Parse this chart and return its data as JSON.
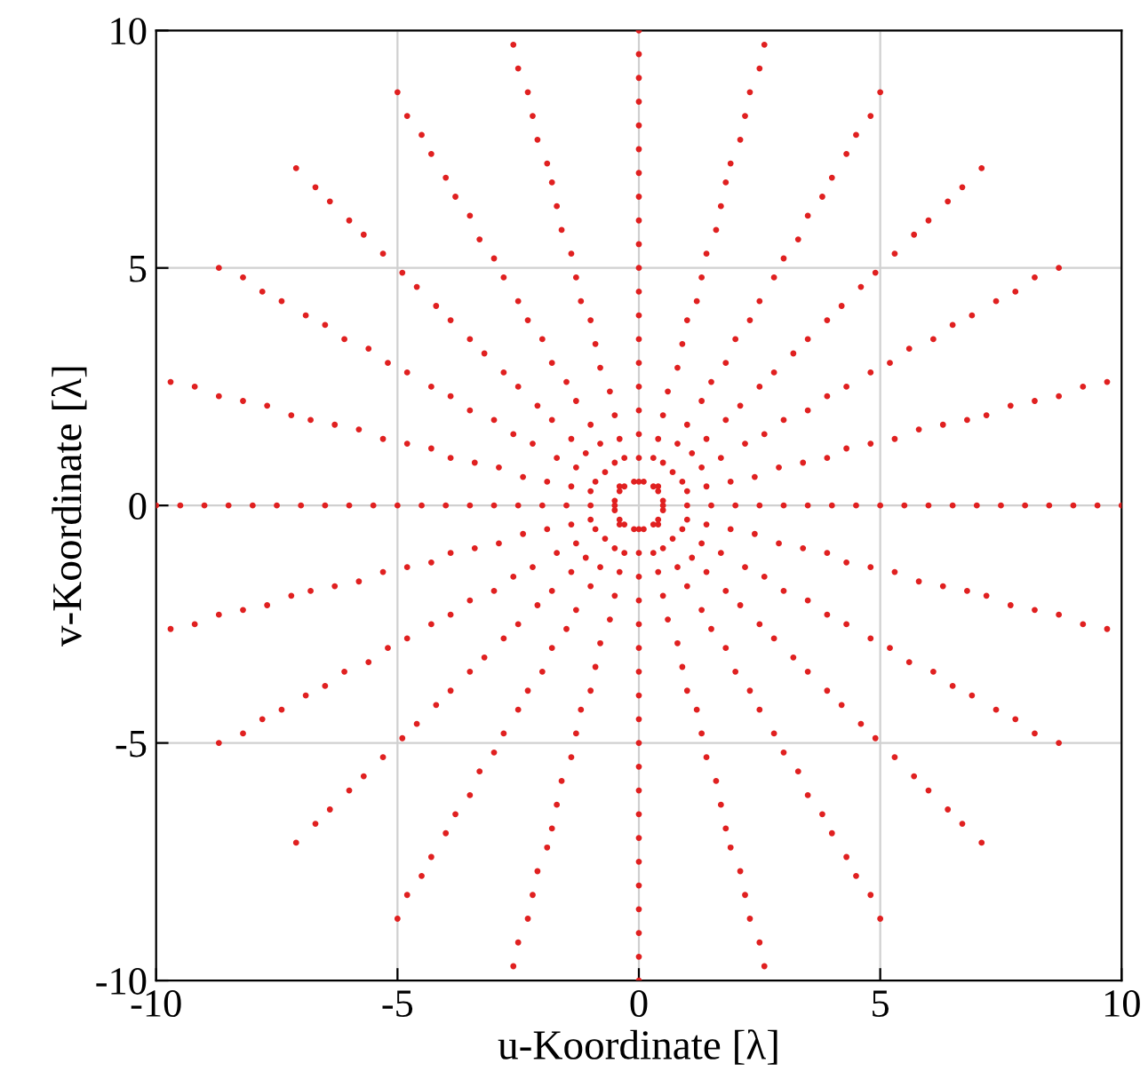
{
  "chart_data": {
    "type": "scatter",
    "xlabel": "u-Koordinate [λ]",
    "ylabel": "v-Koordinate [λ]",
    "xlim": [
      -10,
      10
    ],
    "ylim": [
      -10,
      10
    ],
    "xticks": [
      -10,
      -5,
      0,
      5,
      10
    ],
    "yticks": [
      -10,
      -5,
      0,
      5,
      10
    ],
    "grid": true,
    "marker": "circle",
    "series": [
      {
        "color": "#e02020",
        "x": [
          0.5,
          0.5,
          0.4,
          0.4,
          0.3,
          0.1,
          0,
          -0.1,
          -0.3,
          -0.4,
          -0.4,
          -0.5,
          -0.5,
          -0.5,
          -0.4,
          -0.4,
          -0.3,
          -0.1,
          0,
          0.1,
          0.3,
          0.4,
          0.4,
          0.5
        ],
        "values": [
          0,
          0.1,
          0.3,
          0.4,
          0.4,
          0.5,
          0.5,
          0.5,
          0.4,
          0.4,
          0.3,
          0.1,
          0,
          -0.1,
          -0.3,
          -0.4,
          -0.4,
          -0.5,
          -0.5,
          -0.5,
          -0.4,
          -0.4,
          -0.3,
          -0.1
        ]
      },
      {
        "color": "#e02020",
        "x": [
          1,
          1,
          0.9,
          0.7,
          0.5,
          0.3,
          0,
          -0.3,
          -0.5,
          -0.7,
          -0.9,
          -1,
          -1,
          -1,
          -0.9,
          -0.7,
          -0.5,
          -0.3,
          0,
          0.3,
          0.5,
          0.7,
          0.9,
          1
        ],
        "values": [
          0,
          0.3,
          0.5,
          0.7,
          0.9,
          1,
          1,
          1,
          0.9,
          0.7,
          0.5,
          0.3,
          0,
          -0.3,
          -0.5,
          -0.7,
          -0.9,
          -1,
          -1,
          -1,
          -0.9,
          -0.7,
          -0.5,
          -0.3
        ]
      },
      {
        "color": "#e02020",
        "x": [
          1.5,
          1.4,
          1.3,
          1.1,
          0.8,
          0.4,
          0,
          -0.4,
          -0.8,
          -1.1,
          -1.3,
          -1.4,
          -1.5,
          -1.4,
          -1.3,
          -1.1,
          -0.8,
          -0.4,
          0,
          0.4,
          0.8,
          1.1,
          1.3,
          1.4
        ],
        "values": [
          0,
          0.4,
          0.8,
          1.1,
          1.3,
          1.4,
          1.5,
          1.4,
          1.3,
          1.1,
          0.8,
          0.4,
          0,
          -0.4,
          -0.8,
          -1.1,
          -1.3,
          -1.4,
          -1.5,
          -1.4,
          -1.3,
          -1.1,
          -0.8,
          -0.4
        ]
      },
      {
        "color": "#e02020",
        "x": [
          2,
          1.9,
          1.7,
          1.4,
          1,
          0.5,
          0,
          -0.5,
          -1,
          -1.4,
          -1.7,
          -1.9,
          -2,
          -1.9,
          -1.7,
          -1.4,
          -1,
          -0.5,
          0,
          0.5,
          1,
          1.4,
          1.7,
          1.9
        ],
        "values": [
          0,
          0.5,
          1,
          1.4,
          1.7,
          1.9,
          2,
          1.9,
          1.7,
          1.4,
          1,
          0.5,
          0,
          -0.5,
          -1,
          -1.4,
          -1.7,
          -1.9,
          -2,
          -1.9,
          -1.7,
          -1.4,
          -1,
          -0.5
        ]
      },
      {
        "color": "#e02020",
        "x": [
          2.5,
          2.4,
          2.2,
          1.8,
          1.3,
          0.6,
          0,
          -0.6,
          -1.3,
          -1.8,
          -2.2,
          -2.4,
          -2.5,
          -2.4,
          -2.2,
          -1.8,
          -1.3,
          -0.6,
          0,
          0.6,
          1.3,
          1.8,
          2.2,
          2.4
        ],
        "values": [
          0,
          0.6,
          1.3,
          1.8,
          2.2,
          2.4,
          2.5,
          2.4,
          2.2,
          1.8,
          1.3,
          0.6,
          0,
          -0.6,
          -1.3,
          -1.8,
          -2.2,
          -2.4,
          -2.5,
          -2.4,
          -2.2,
          -1.8,
          -1.3,
          -0.6
        ]
      },
      {
        "color": "#e02020",
        "x": [
          3,
          2.9,
          2.6,
          2.1,
          1.5,
          0.8,
          0,
          -0.8,
          -1.5,
          -2.1,
          -2.6,
          -2.9,
          -3,
          -2.9,
          -2.6,
          -2.1,
          -1.5,
          -0.8,
          0,
          0.8,
          1.5,
          2.1,
          2.6,
          2.9
        ],
        "values": [
          0,
          0.8,
          1.5,
          2.1,
          2.6,
          2.9,
          3,
          2.9,
          2.6,
          2.1,
          1.5,
          0.8,
          0,
          -0.8,
          -1.5,
          -2.1,
          -2.6,
          -2.9,
          -3,
          -2.9,
          -2.6,
          -2.1,
          -1.5,
          -0.8
        ]
      },
      {
        "color": "#e02020",
        "x": [
          3.5,
          3.4,
          3,
          2.5,
          1.8,
          0.9,
          0,
          -0.9,
          -1.8,
          -2.5,
          -3,
          -3.4,
          -3.5,
          -3.4,
          -3,
          -2.5,
          -1.8,
          -0.9,
          0,
          0.9,
          1.8,
          2.5,
          3,
          3.4
        ],
        "values": [
          0,
          0.9,
          1.8,
          2.5,
          3,
          3.4,
          3.5,
          3.4,
          3,
          2.5,
          1.8,
          0.9,
          0,
          -0.9,
          -1.8,
          -2.5,
          -3,
          -3.4,
          -3.5,
          -3.4,
          -3,
          -2.5,
          -1.8,
          -0.9
        ]
      },
      {
        "color": "#e02020",
        "x": [
          4,
          3.9,
          3.5,
          2.8,
          2,
          1,
          0,
          -1,
          -2,
          -2.8,
          -3.5,
          -3.9,
          -4,
          -3.9,
          -3.5,
          -2.8,
          -2,
          -1,
          0,
          1,
          2,
          2.8,
          3.5,
          3.9
        ],
        "values": [
          0,
          1,
          2,
          2.8,
          3.5,
          3.9,
          4,
          3.9,
          3.5,
          2.8,
          2,
          1,
          0,
          -1,
          -2,
          -2.8,
          -3.5,
          -3.9,
          -4,
          -3.9,
          -3.5,
          -2.8,
          -2,
          -1
        ]
      },
      {
        "color": "#e02020",
        "x": [
          4.5,
          4.3,
          3.9,
          3.2,
          2.3,
          1.2,
          0,
          -1.2,
          -2.3,
          -3.2,
          -3.9,
          -4.3,
          -4.5,
          -4.3,
          -3.9,
          -3.2,
          -2.3,
          -1.2,
          0,
          1.2,
          2.3,
          3.2,
          3.9,
          4.3
        ],
        "values": [
          0,
          1.2,
          2.3,
          3.2,
          3.9,
          4.3,
          4.5,
          4.3,
          3.9,
          3.2,
          2.3,
          1.2,
          0,
          -1.2,
          -2.3,
          -3.2,
          -3.9,
          -4.3,
          -4.5,
          -4.3,
          -3.9,
          -3.2,
          -2.3,
          -1.2
        ]
      },
      {
        "color": "#e02020",
        "x": [
          5,
          4.8,
          4.3,
          3.5,
          2.5,
          1.3,
          0,
          -1.3,
          -2.5,
          -3.5,
          -4.3,
          -4.8,
          -5,
          -4.8,
          -4.3,
          -3.5,
          -2.5,
          -1.3,
          0,
          1.3,
          2.5,
          3.5,
          4.3,
          4.8
        ],
        "values": [
          0,
          1.3,
          2.5,
          3.5,
          4.3,
          4.8,
          5,
          4.8,
          4.3,
          3.5,
          2.5,
          1.3,
          0,
          -1.3,
          -2.5,
          -3.5,
          -4.3,
          -4.8,
          -5,
          -4.8,
          -4.3,
          -3.5,
          -2.5,
          -1.3
        ]
      },
      {
        "color": "#e02020",
        "x": [
          5.5,
          5.3,
          4.8,
          3.9,
          2.8,
          1.4,
          0,
          -1.4,
          -2.8,
          -3.9,
          -4.8,
          -5.3,
          -5.5,
          -5.3,
          -4.8,
          -3.9,
          -2.8,
          -1.4,
          0,
          1.4,
          2.8,
          3.9,
          4.8,
          5.3
        ],
        "values": [
          0,
          1.4,
          2.8,
          3.9,
          4.8,
          5.3,
          5.5,
          5.3,
          4.8,
          3.9,
          2.8,
          1.4,
          0,
          -1.4,
          -2.8,
          -3.9,
          -4.8,
          -5.3,
          -5.5,
          -5.3,
          -4.8,
          -3.9,
          -2.8,
          -1.4
        ]
      },
      {
        "color": "#e02020",
        "x": [
          6,
          5.8,
          5.2,
          4.2,
          3,
          1.6,
          0,
          -1.6,
          -3,
          -4.2,
          -5.2,
          -5.8,
          -6,
          -5.8,
          -5.2,
          -4.2,
          -3,
          -1.6,
          0,
          1.6,
          3,
          4.2,
          5.2,
          5.8
        ],
        "values": [
          0,
          1.6,
          3,
          4.2,
          5.2,
          5.8,
          6,
          5.8,
          5.2,
          4.2,
          3,
          1.6,
          0,
          -1.6,
          -3,
          -4.2,
          -5.2,
          -5.8,
          -6,
          -5.8,
          -5.2,
          -4.2,
          -3,
          -1.6
        ]
      },
      {
        "color": "#e02020",
        "x": [
          6.5,
          6.3,
          5.6,
          4.6,
          3.3,
          1.7,
          0,
          -1.7,
          -3.3,
          -4.6,
          -5.6,
          -6.3,
          -6.5,
          -6.3,
          -5.6,
          -4.6,
          -3.3,
          -1.7,
          0,
          1.7,
          3.3,
          4.6,
          5.6,
          6.3
        ],
        "values": [
          0,
          1.7,
          3.3,
          4.6,
          5.6,
          6.3,
          6.5,
          6.3,
          5.6,
          4.6,
          3.3,
          1.7,
          0,
          -1.7,
          -3.3,
          -4.6,
          -5.6,
          -6.3,
          -6.5,
          -6.3,
          -5.6,
          -4.6,
          -3.3,
          -1.7
        ]
      },
      {
        "color": "#e02020",
        "x": [
          7,
          6.8,
          6.1,
          4.9,
          3.5,
          1.8,
          0,
          -1.8,
          -3.5,
          -4.9,
          -6.1,
          -6.8,
          -7,
          -6.8,
          -6.1,
          -4.9,
          -3.5,
          -1.8,
          0,
          1.8,
          3.5,
          4.9,
          6.1,
          6.8
        ],
        "values": [
          0,
          1.8,
          3.5,
          4.9,
          6.1,
          6.8,
          7,
          6.8,
          6.1,
          4.9,
          3.5,
          1.8,
          0,
          -1.8,
          -3.5,
          -4.9,
          -6.1,
          -6.8,
          -7,
          -6.8,
          -6.1,
          -4.9,
          -3.5,
          -1.8
        ]
      },
      {
        "color": "#e02020",
        "x": [
          7.5,
          7.2,
          6.5,
          5.3,
          3.8,
          1.9,
          0,
          -1.9,
          -3.8,
          -5.3,
          -6.5,
          -7.2,
          -7.5,
          -7.2,
          -6.5,
          -5.3,
          -3.8,
          -1.9,
          0,
          1.9,
          3.8,
          5.3,
          6.5,
          7.2
        ],
        "values": [
          0,
          1.9,
          3.8,
          5.3,
          6.5,
          7.2,
          7.5,
          7.2,
          6.5,
          5.3,
          3.8,
          1.9,
          0,
          -1.9,
          -3.8,
          -5.3,
          -6.5,
          -7.2,
          -7.5,
          -7.2,
          -6.5,
          -5.3,
          -3.8,
          -1.9
        ]
      },
      {
        "color": "#e02020",
        "x": [
          8,
          7.7,
          6.9,
          5.7,
          4,
          2.1,
          0,
          -2.1,
          -4,
          -5.7,
          -6.9,
          -7.7,
          -8,
          -7.7,
          -6.9,
          -5.7,
          -4,
          -2.1,
          0,
          2.1,
          4,
          5.7,
          6.9,
          7.7
        ],
        "values": [
          0,
          2.1,
          4,
          5.7,
          6.9,
          7.7,
          8,
          7.7,
          6.9,
          5.7,
          4,
          2.1,
          0,
          -2.1,
          -4,
          -5.7,
          -6.9,
          -7.7,
          -8,
          -7.7,
          -6.9,
          -5.7,
          -4,
          -2.1
        ]
      },
      {
        "color": "#e02020",
        "x": [
          8.5,
          8.2,
          7.4,
          6,
          4.3,
          2.2,
          0,
          -2.2,
          -4.3,
          -6,
          -7.4,
          -8.2,
          -8.5,
          -8.2,
          -7.4,
          -6,
          -4.3,
          -2.2,
          0,
          2.2,
          4.3,
          6,
          7.4,
          8.2
        ],
        "values": [
          0,
          2.2,
          4.3,
          6,
          7.4,
          8.2,
          8.5,
          8.2,
          7.4,
          6,
          4.3,
          2.2,
          0,
          -2.2,
          -4.3,
          -6,
          -7.4,
          -8.2,
          -8.5,
          -8.2,
          -7.4,
          -6,
          -4.3,
          -2.2
        ]
      },
      {
        "color": "#e02020",
        "x": [
          9,
          8.7,
          7.8,
          6.4,
          4.5,
          2.3,
          0,
          -2.3,
          -4.5,
          -6.4,
          -7.8,
          -8.7,
          -9,
          -8.7,
          -7.8,
          -6.4,
          -4.5,
          -2.3,
          0,
          2.3,
          4.5,
          6.4,
          7.8,
          8.7
        ],
        "values": [
          0,
          2.3,
          4.5,
          6.4,
          7.8,
          8.7,
          9,
          8.7,
          7.8,
          6.4,
          4.5,
          2.3,
          0,
          -2.3,
          -4.5,
          -6.4,
          -7.8,
          -8.7,
          -9,
          -8.7,
          -7.8,
          -6.4,
          -4.5,
          -2.3
        ]
      },
      {
        "color": "#e02020",
        "x": [
          9.5,
          9.2,
          8.2,
          6.7,
          4.8,
          2.5,
          0,
          -2.5,
          -4.8,
          -6.7,
          -8.2,
          -9.2,
          -9.5,
          -9.2,
          -8.2,
          -6.7,
          -4.8,
          -2.5,
          0,
          2.5,
          4.8,
          6.7,
          8.2,
          9.2
        ],
        "values": [
          0,
          2.5,
          4.8,
          6.7,
          8.2,
          9.2,
          9.5,
          9.2,
          8.2,
          6.7,
          4.8,
          2.5,
          0,
          -2.5,
          -4.8,
          -6.7,
          -8.2,
          -9.2,
          -9.5,
          -9.2,
          -8.2,
          -6.7,
          -4.8,
          -2.5
        ]
      },
      {
        "color": "#e02020",
        "x": [
          10,
          9.7,
          8.7,
          7.1,
          5,
          2.6,
          0,
          -2.6,
          -5,
          -7.1,
          -8.7,
          -9.7,
          -10,
          -9.7,
          -8.7,
          -7.1,
          -5,
          -2.6,
          0,
          2.6,
          5,
          7.1,
          8.7,
          9.7
        ],
        "values": [
          0,
          2.6,
          5,
          7.1,
          8.7,
          9.7,
          10,
          9.7,
          8.7,
          7.1,
          5,
          2.6,
          0,
          -2.6,
          -5,
          -7.1,
          -8.7,
          -9.7,
          -10,
          -9.7,
          -8.7,
          -7.1,
          -5,
          -2.6
        ]
      }
    ]
  }
}
